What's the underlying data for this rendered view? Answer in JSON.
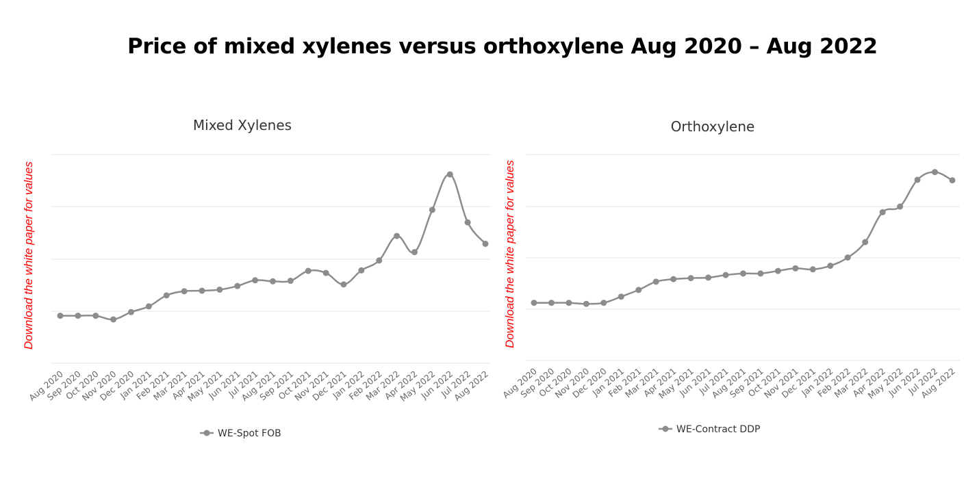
{
  "page": {
    "title": "Price of mixed xylenes versus orthoxylene Aug 2020 – Aug 2022",
    "side_note": "Download the white paper for values"
  },
  "colors": {
    "series": "#8c8c8c",
    "grid": "#e6e6e6",
    "note": "#ff0000",
    "tick_text": "#666666"
  },
  "chart_data": [
    {
      "type": "line",
      "title": "Mixed Xylenes",
      "xlabel": "",
      "ylabel": "",
      "y_tick_labels_shown": false,
      "ylim": [
        0,
        4
      ],
      "grid": true,
      "legend_position": "bottom-center",
      "categories": [
        "Aug 2020",
        "Sep 2020",
        "Oct 2020",
        "Nov 2020",
        "Dec 2020",
        "Jan 2021",
        "Feb 2021",
        "Mar 2021",
        "Apr 2021",
        "May 2021",
        "Jun 2021",
        "Jul 2021",
        "Aug 2021",
        "Sep 2021",
        "Oct 2021",
        "Nov 2021",
        "Dec 2021",
        "Jan 2022",
        "Feb 2022",
        "Mar 2022",
        "Apr 2022",
        "May 2022",
        "Jun 2022",
        "Jul 2022",
        "Aug 2022"
      ],
      "series": [
        {
          "name": "WE-Spot FOB",
          "values": [
            0.91,
            0.91,
            0.91,
            0.84,
            0.98,
            1.09,
            1.3,
            1.38,
            1.39,
            1.41,
            1.48,
            1.59,
            1.57,
            1.58,
            1.77,
            1.73,
            1.51,
            1.78,
            1.97,
            2.44,
            2.13,
            2.94,
            3.62,
            2.7,
            2.29
          ]
        }
      ]
    },
    {
      "type": "line",
      "title": "Orthoxylene",
      "xlabel": "",
      "ylabel": "",
      "y_tick_labels_shown": false,
      "ylim": [
        0,
        4
      ],
      "grid": true,
      "legend_position": "bottom-center",
      "categories": [
        "Aug 2020",
        "Sep 2020",
        "Oct 2020",
        "Nov 2020",
        "Dec 2020",
        "Jan 2021",
        "Feb 2021",
        "Mar 2021",
        "Apr 2021",
        "May 2021",
        "Jun 2021",
        "Jul 2021",
        "Aug 2021",
        "Sep 2021",
        "Oct 2021",
        "Nov 2021",
        "Dec 2021",
        "Jan 2022",
        "Feb 2022",
        "Mar 2022",
        "Apr 2022",
        "May 2022",
        "Jun 2022",
        "Jul 2022",
        "Aug 2022"
      ],
      "series": [
        {
          "name": "WE-Contract DDP",
          "values": [
            1.12,
            1.12,
            1.12,
            1.1,
            1.12,
            1.24,
            1.37,
            1.53,
            1.58,
            1.6,
            1.61,
            1.66,
            1.69,
            1.69,
            1.74,
            1.79,
            1.77,
            1.84,
            2.0,
            2.3,
            2.88,
            2.99,
            3.51,
            3.66,
            3.5
          ]
        }
      ]
    }
  ]
}
